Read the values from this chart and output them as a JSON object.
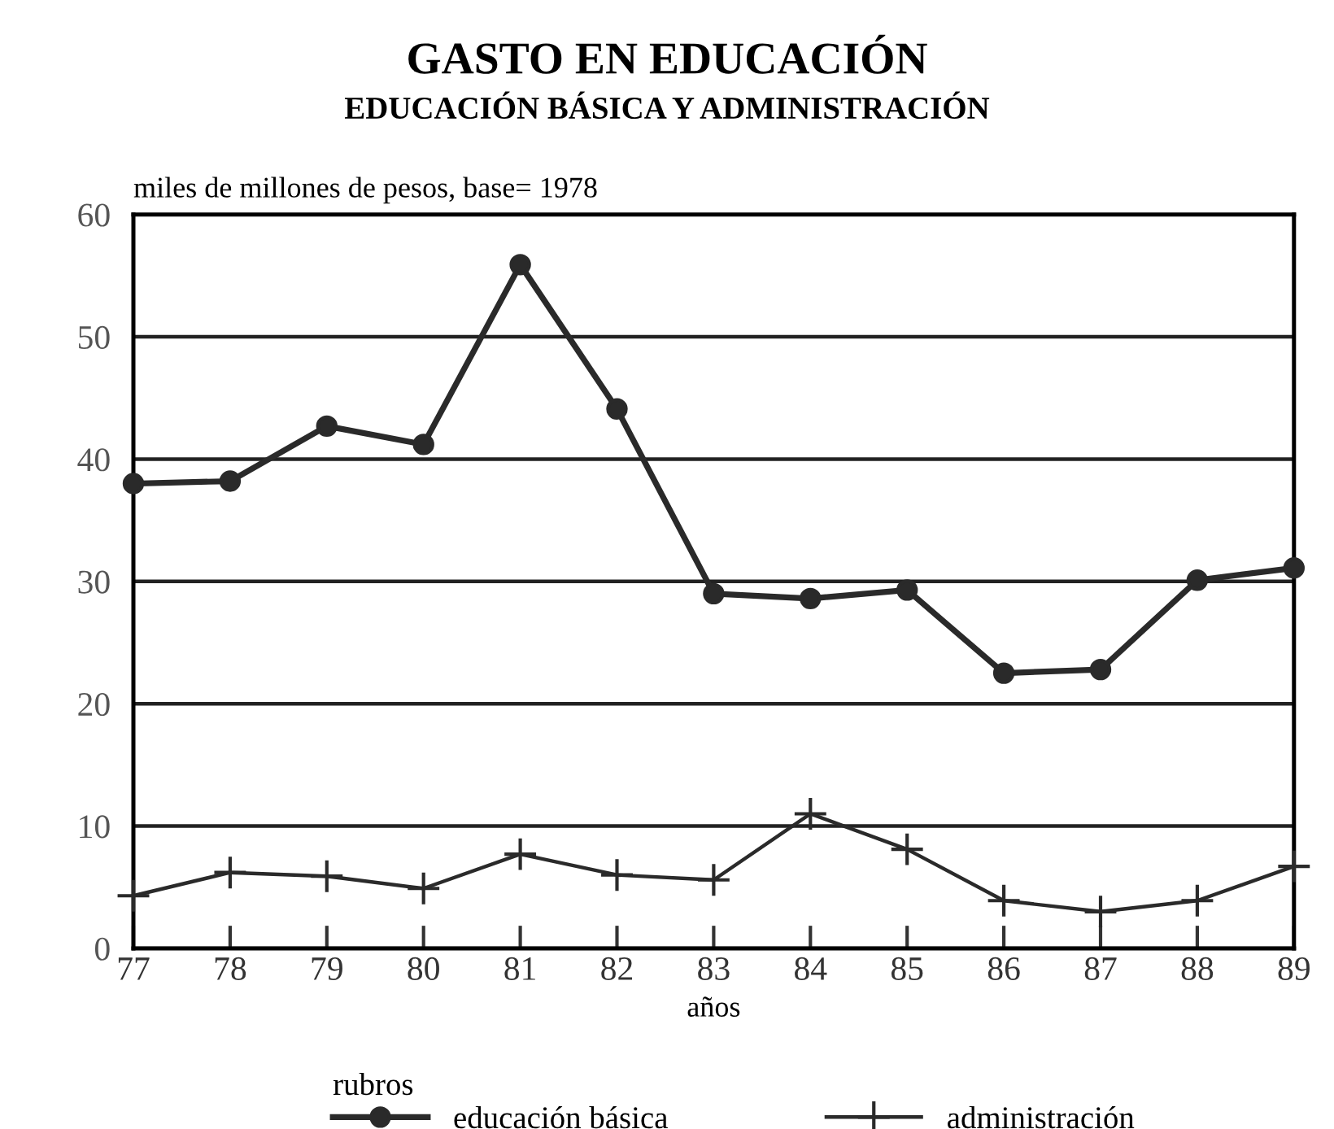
{
  "chart_data": {
    "type": "line",
    "title": "GASTO EN EDUCACIÓN",
    "subtitle": "EDUCACIÓN BÁSICA Y ADMINISTRACIÓN",
    "ylabel": "miles de millones de pesos, base= 1978",
    "xlabel": "años",
    "legend_title": "rubros",
    "x": [
      77,
      78,
      79,
      80,
      81,
      82,
      83,
      84,
      85,
      86,
      87,
      88,
      89
    ],
    "series": [
      {
        "name": "educación básica",
        "color": "#2a2a2a",
        "marker": "circle",
        "values": [
          38.0,
          38.2,
          42.7,
          41.2,
          55.9,
          44.1,
          29.0,
          28.6,
          29.3,
          22.5,
          22.8,
          30.1,
          31.1
        ]
      },
      {
        "name": "administración",
        "color": "#2a2a2a",
        "marker": "cross",
        "values": [
          4.3,
          6.2,
          5.9,
          4.9,
          7.7,
          6.0,
          5.6,
          11.0,
          8.1,
          3.9,
          3.0,
          3.9,
          6.7
        ]
      }
    ],
    "xlim": [
      77,
      89
    ],
    "xticks": [
      77,
      78,
      79,
      80,
      81,
      82,
      83,
      84,
      85,
      86,
      87,
      88,
      89
    ],
    "ylim": [
      0,
      60
    ],
    "yticks": [
      0,
      10,
      20,
      30,
      40,
      50,
      60
    ],
    "grid": "y",
    "legend": "bottom",
    "line_style": "solid"
  }
}
